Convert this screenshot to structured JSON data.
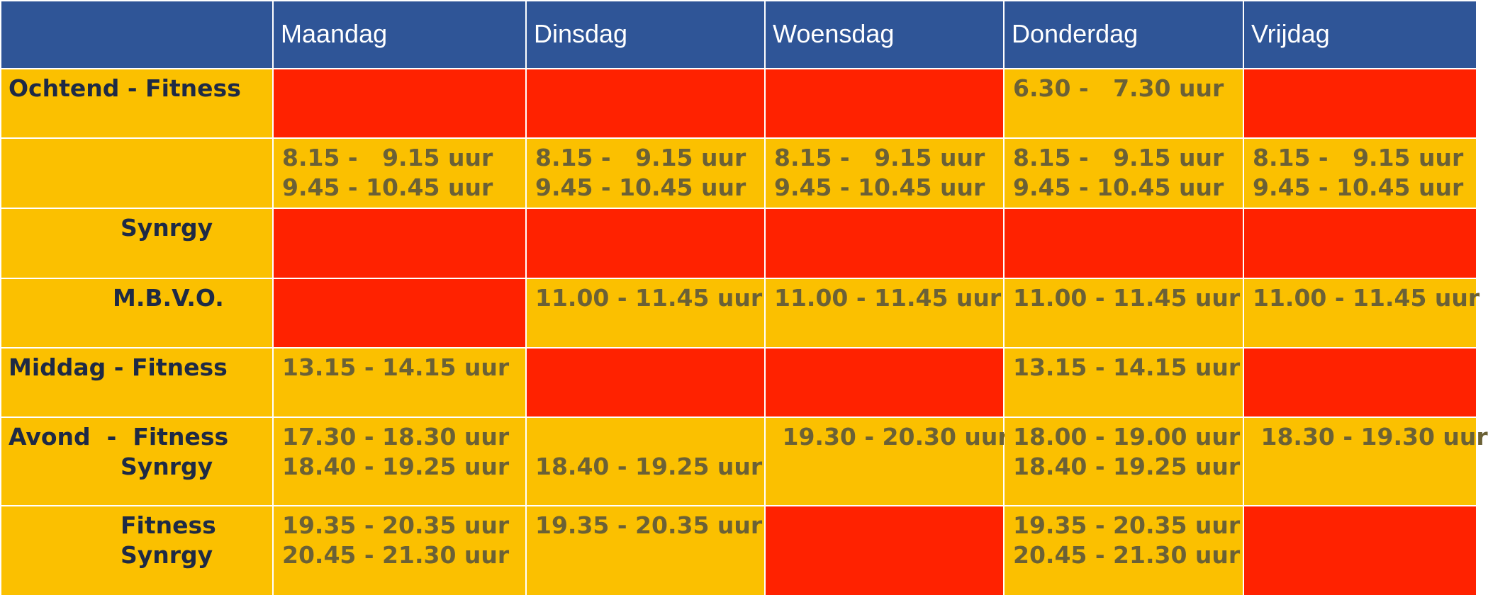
{
  "header": {
    "days": [
      "Maandag",
      "Dinsdag",
      "Woensdag",
      "Donderdag",
      "Vrijdag"
    ]
  },
  "rows": [
    {
      "label": "Ochtend - Fitness",
      "cells": [
        [],
        [],
        [],
        [
          "6.30 -   7.30 uur"
        ],
        []
      ]
    },
    {
      "label": "",
      "cells": [
        [
          "8.15 -   9.15 uur",
          "9.45 - 10.45 uur"
        ],
        [
          "8.15 -   9.15 uur",
          "9.45 - 10.45 uur"
        ],
        [
          "8.15 -   9.15 uur",
          "9.45 - 10.45 uur"
        ],
        [
          "8.15 -   9.15 uur",
          "9.45 - 10.45 uur"
        ],
        [
          "8.15 -   9.15 uur",
          "9.45 - 10.45 uur"
        ]
      ]
    },
    {
      "label": "Synrgy",
      "cells": [
        [],
        [],
        [],
        [],
        []
      ]
    },
    {
      "label": "M.B.V.O.",
      "cells": [
        [],
        [
          "11.00 - 11.45 uur"
        ],
        [
          "11.00 - 11.45 uur"
        ],
        [
          "11.00 - 11.45 uur"
        ],
        [
          "11.00 - 11.45 uur"
        ]
      ]
    },
    {
      "label": "Middag - Fitness",
      "cells": [
        [
          "13.15 - 14.15 uur"
        ],
        [],
        [],
        [
          "13.15 - 14.15 uur"
        ],
        []
      ]
    },
    {
      "label": "Avond  -  Fitness",
      "label2": "Synrgy",
      "cells": [
        [
          "17.30 - 18.30 uur",
          "18.40 - 19.25 uur"
        ],
        [
          "",
          "18.40 - 19.25 uur"
        ],
        [
          " 19.30 - 20.30 uur"
        ],
        [
          "18.00 - 19.00 uur",
          "18.40 - 19.25 uur"
        ],
        [
          " 18.30 - 19.30 uur"
        ]
      ]
    },
    {
      "label": "Fitness",
      "label2": "Synrgy",
      "cells": [
        [
          "19.35 - 20.35 uur",
          "20.45 - 21.30 uur"
        ],
        [
          "19.35 - 20.35 uur"
        ],
        [],
        [
          "19.35 - 20.35 uur",
          "20.45 - 21.30 uur"
        ],
        []
      ]
    }
  ],
  "colors": {
    "header": "#2f5597",
    "slot": "#fbc000",
    "unavailable": "#ff2200",
    "slot_text": "#6b6136",
    "label_text": "#1e2a45"
  }
}
